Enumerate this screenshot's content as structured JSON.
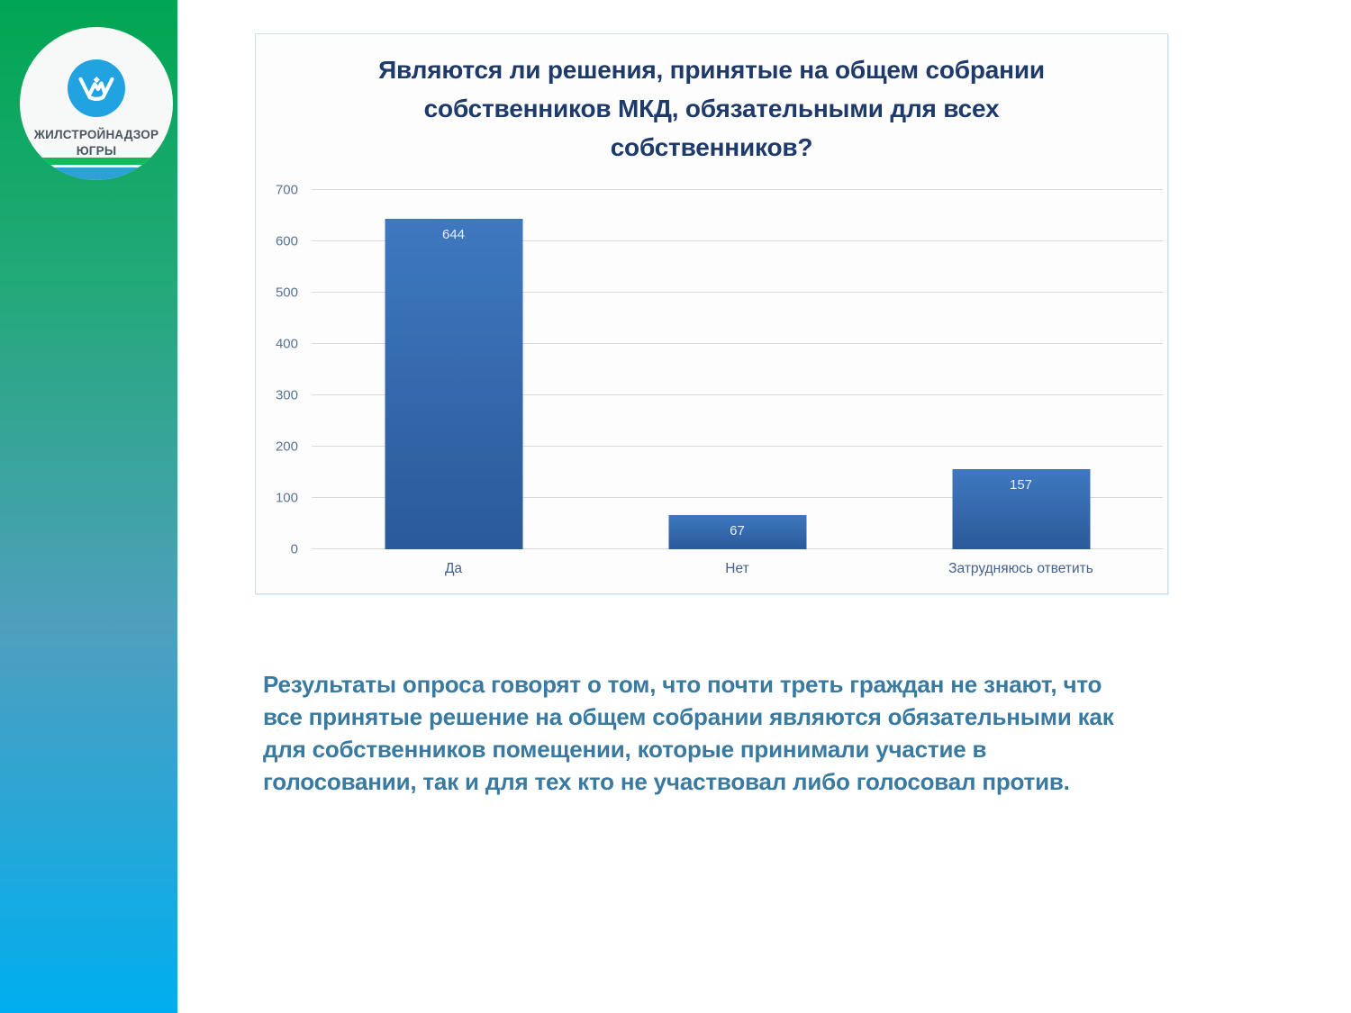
{
  "sidebar": {
    "logo": {
      "org_line1": "ЖИЛСТРОЙНАДЗОР",
      "org_line2": "ЮГРЫ"
    }
  },
  "chart_data": {
    "type": "bar",
    "title": "Являются ли решения, принятые на общем собрании собственников МКД, обязательными для всех собственников?",
    "categories": [
      "Да",
      "Нет",
      "Затрудняюсь ответить"
    ],
    "values": [
      644,
      67,
      157
    ],
    "xlabel": "",
    "ylabel": "",
    "ylim": [
      0,
      700
    ],
    "yticks": [
      0,
      100,
      200,
      300,
      400,
      500,
      600,
      700
    ],
    "grid": true,
    "legend_position": "none",
    "data_labels": true
  },
  "body_text": "Результаты опроса говорят о том, что почти треть граждан не знают, что все принятые решение на общем собрании являются обязательными как для собственников помещении, которые принимали участие в голосовании, так и для тех кто не участвовал либо голосовал против.",
  "colors": {
    "sidebar_gradient_top": "#00a651",
    "sidebar_gradient_bottom": "#00aeef",
    "emblem_blue": "#21a3e1",
    "stripe_green": "#0fbc5c",
    "stripe_blue": "#2f9fd8",
    "logo_text": "#4b565f",
    "panel_border": "#cfdfee",
    "title_text": "#1e3a6a",
    "axis_label": "#5a7394",
    "gridline": "#d9d9d9",
    "bar_top": "#3f78c0",
    "bar_bottom": "#2a5a99",
    "value_label": "#e8eef6",
    "category_label": "#44608f",
    "body_text": "#3a7aa1"
  }
}
